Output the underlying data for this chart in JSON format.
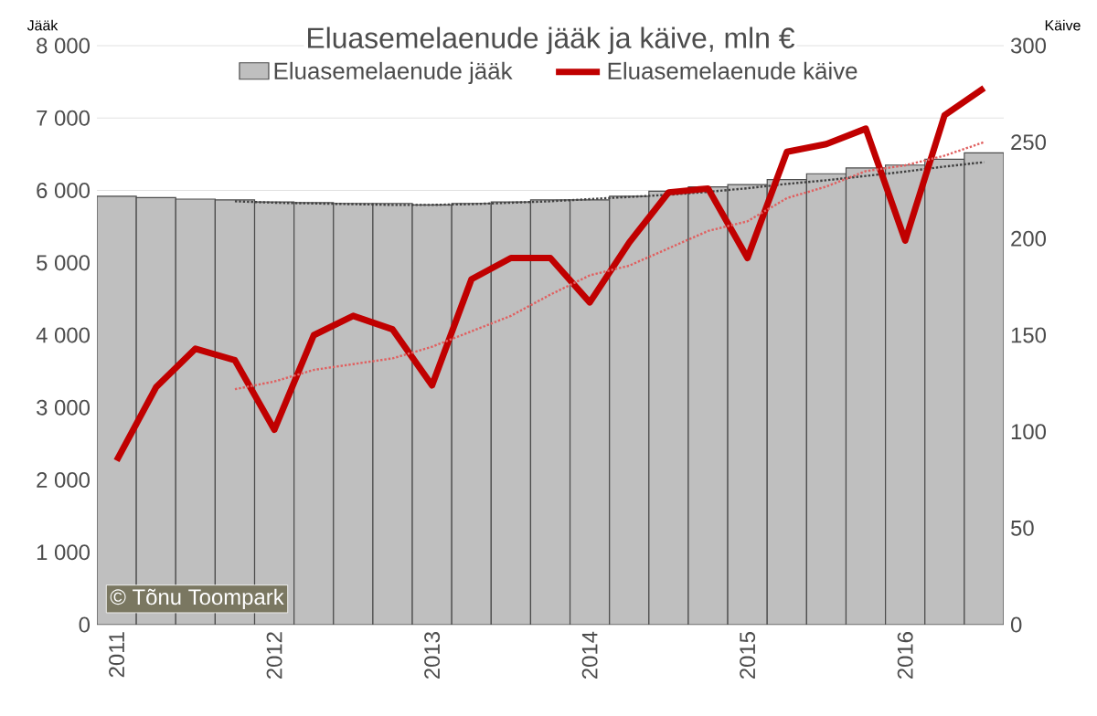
{
  "chart_data": {
    "type": "bar",
    "title": "Eluasemelaenude jääk ja käive, mln €",
    "ylabel": "Jääk",
    "y2label": "Käive",
    "categories": [
      "2011",
      null,
      null,
      null,
      "2012",
      null,
      null,
      null,
      "2013",
      null,
      null,
      null,
      "2014",
      null,
      null,
      null,
      "2015",
      null,
      null,
      null,
      "2016",
      null,
      null
    ],
    "series": [
      {
        "name": "Eluasemelaenude jääk",
        "color": "#bfbfbf",
        "values": [
          5920,
          5900,
          5880,
          5870,
          5840,
          5830,
          5820,
          5820,
          5800,
          5820,
          5840,
          5870,
          5870,
          5920,
          5990,
          6050,
          6080,
          6150,
          6230,
          6310,
          6350,
          6430,
          6520
        ]
      },
      {
        "name": "Eluasemelaenude käive",
        "type": "line",
        "axis": "y2",
        "color": "#c00000",
        "line_style": "solid",
        "values": [
          85,
          123,
          143,
          137,
          101,
          150,
          160,
          153,
          124,
          179,
          190,
          190,
          167,
          198,
          224,
          226,
          190,
          245,
          249,
          257,
          199,
          264,
          278
        ]
      },
      {
        "type": "line",
        "color": "#404040",
        "line_style": "dotted",
        "values": [
          null,
          null,
          null,
          5850,
          5830,
          5820,
          5810,
          5800,
          5800,
          5810,
          5830,
          5850,
          5880,
          5910,
          5940,
          5980,
          6030,
          6090,
          6140,
          6200,
          6260,
          6330,
          6390
        ]
      },
      {
        "type": "line",
        "axis": "y2",
        "color": "#e06060",
        "line_style": "dotted",
        "values": [
          null,
          null,
          null,
          122,
          126,
          132,
          135,
          138,
          144,
          152,
          160,
          171,
          181,
          186,
          195,
          204,
          209,
          221,
          227,
          235,
          238,
          243,
          250
        ]
      }
    ],
    "ylim": [
      0,
      8000
    ],
    "yticks": [
      0,
      {
        "value": 1000,
        "label": "1 000"
      },
      {
        "value": 2000,
        "label": "2 000"
      },
      {
        "value": 3000,
        "label": "3 000"
      },
      {
        "value": 4000,
        "label": "4 000"
      },
      {
        "value": 5000,
        "label": "5 000"
      },
      {
        "value": 6000,
        "label": "6 000"
      },
      {
        "value": 7000,
        "label": "7 000"
      },
      {
        "value": 8000,
        "label": "8 000"
      }
    ],
    "y2lim": [
      0,
      300
    ],
    "y2ticks": [
      0,
      50,
      100,
      150,
      200,
      250,
      300
    ],
    "grid": "y",
    "legend": "top",
    "marker": "none",
    "annotations": [
      "© Tõnu Toompark"
    ]
  }
}
